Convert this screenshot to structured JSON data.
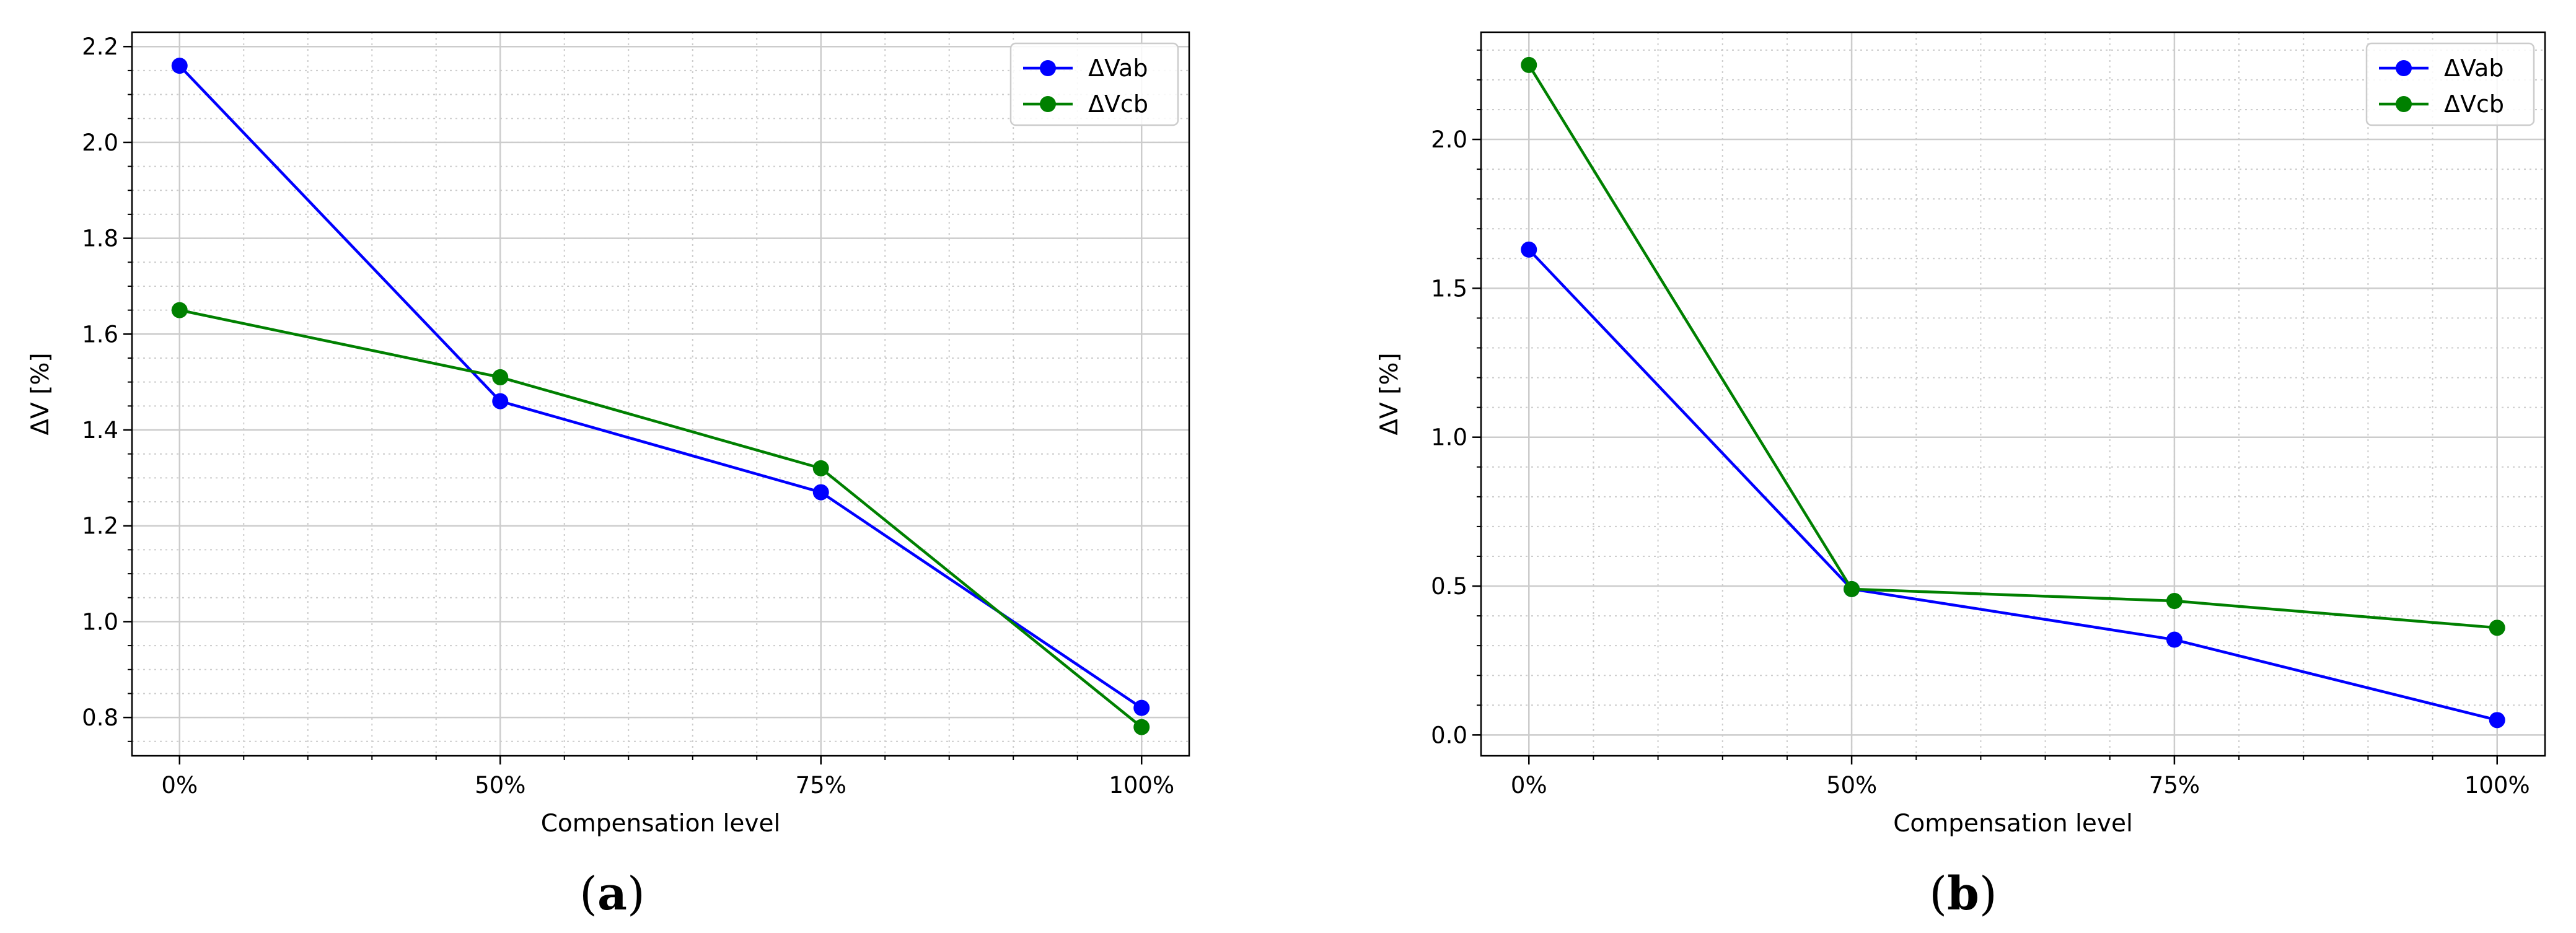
{
  "chart_data": [
    {
      "type": "line",
      "caption": {
        "open": "(",
        "letter": "a",
        "close": ")"
      },
      "categories": [
        "0%",
        "50%",
        "75%",
        "100%"
      ],
      "xlabel": "Compensation level",
      "ylabel": "ΔV [%]",
      "ylim": [
        0.72,
        2.23
      ],
      "yticks": [
        0.8,
        1.0,
        1.2,
        1.4,
        1.6,
        1.8,
        2.0,
        2.2
      ],
      "yminor_step": 0.05,
      "grid": true,
      "legend_position": "top-right",
      "series": [
        {
          "name": "ΔVab",
          "color": "#0000ff",
          "values": [
            2.16,
            1.46,
            1.27,
            0.82
          ]
        },
        {
          "name": "ΔVcb",
          "color": "#008000",
          "values": [
            1.65,
            1.51,
            1.32,
            0.78
          ]
        }
      ]
    },
    {
      "type": "line",
      "caption": {
        "open": "(",
        "letter": "b",
        "close": ")"
      },
      "categories": [
        "0%",
        "50%",
        "75%",
        "100%"
      ],
      "xlabel": "Compensation level",
      "ylabel": "ΔV [%]",
      "ylim": [
        -0.07,
        2.36
      ],
      "yticks": [
        0.0,
        0.5,
        1.0,
        1.5,
        2.0
      ],
      "yminor_step": 0.1,
      "grid": true,
      "legend_position": "top-right",
      "series": [
        {
          "name": "ΔVab",
          "color": "#0000ff",
          "values": [
            1.63,
            0.49,
            0.32,
            0.05
          ]
        },
        {
          "name": "ΔVcb",
          "color": "#008000",
          "values": [
            2.25,
            0.49,
            0.45,
            0.36
          ]
        }
      ]
    }
  ]
}
